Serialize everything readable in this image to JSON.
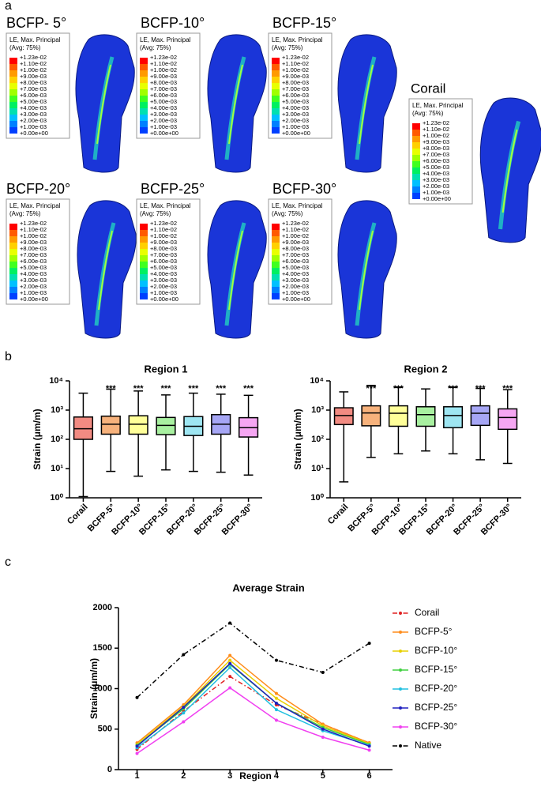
{
  "panel_labels": [
    "a",
    "b",
    "c"
  ],
  "fea_legend": {
    "title": "LE, Max. Principal",
    "subtitle": "(Avg: 75%)",
    "levels": [
      "+1.23e-02",
      "+1.10e-02",
      "+1.00e-02",
      "+9.00e-03",
      "+8.00e-03",
      "+7.00e-03",
      "+6.00e-03",
      "+5.00e-03",
      "+4.00e-03",
      "+3.00e-03",
      "+2.00e-03",
      "+1.00e-03",
      "+0.00e+00"
    ]
  },
  "fea_panels": [
    {
      "title": "BCFP- 5°"
    },
    {
      "title": "BCFP-10°"
    },
    {
      "title": "BCFP-15°"
    },
    {
      "title": "Corail"
    },
    {
      "title": "BCFP-20°"
    },
    {
      "title": "BCFP-25°"
    },
    {
      "title": "BCFP-30°"
    }
  ],
  "chart_data": [
    {
      "type": "box",
      "title": "Region 1",
      "y_label": "Strain (μm/m)",
      "log_scale": true,
      "categories": [
        "Corail",
        "BCFP-5°",
        "BCFP-10°",
        "BCFP-15°",
        "BCFP-20°",
        "BCFP-25°",
        "BCFP-30°"
      ],
      "colors": [
        "#f28b82",
        "#f7b27c",
        "#ffff99",
        "#a8f0a0",
        "#9ee6f2",
        "#a6a6f5",
        "#f5a6f2"
      ],
      "boxes": [
        {
          "min": 1.1,
          "q1": 100,
          "median": 230,
          "q3": 580,
          "max": 3800
        },
        {
          "min": 8,
          "q1": 150,
          "median": 330,
          "q3": 620,
          "max": 5200
        },
        {
          "min": 5.5,
          "q1": 150,
          "median": 330,
          "q3": 640,
          "max": 4500
        },
        {
          "min": 9,
          "q1": 145,
          "median": 300,
          "q3": 560,
          "max": 3300
        },
        {
          "min": 8,
          "q1": 135,
          "median": 280,
          "q3": 600,
          "max": 3800
        },
        {
          "min": 7.5,
          "q1": 150,
          "median": 330,
          "q3": 700,
          "max": 3500
        },
        {
          "min": 6,
          "q1": 120,
          "median": 250,
          "q3": 550,
          "max": 3200
        }
      ],
      "significance": [
        null,
        "***",
        "***",
        "***",
        "***",
        "***",
        "***"
      ],
      "ylim": [
        1,
        10000
      ],
      "yticks": [
        {
          "value": 1,
          "label": "10⁰"
        },
        {
          "value": 10,
          "label": "10¹"
        },
        {
          "value": 100,
          "label": "10²"
        },
        {
          "value": 1000,
          "label": "10³"
        },
        {
          "value": 10000,
          "label": "10⁴"
        }
      ]
    },
    {
      "type": "box",
      "title": "Region 2",
      "y_label": "Strain (μm/m)",
      "log_scale": true,
      "categories": [
        "Corail",
        "BCFP-5°",
        "BCFP-10°",
        "BCFP-15°",
        "BCFP-20°",
        "BCFP-25°",
        "BCFP-30°"
      ],
      "colors": [
        "#f28b82",
        "#f7b27c",
        "#ffff99",
        "#a8f0a0",
        "#9ee6f2",
        "#a6a6f5",
        "#f5a6f2"
      ],
      "boxes": [
        {
          "min": 3.5,
          "q1": 320,
          "median": 650,
          "q3": 1200,
          "max": 4200
        },
        {
          "min": 24,
          "q1": 290,
          "median": 800,
          "q3": 1400,
          "max": 7000
        },
        {
          "min": 32,
          "q1": 280,
          "median": 780,
          "q3": 1400,
          "max": 6000
        },
        {
          "min": 40,
          "q1": 280,
          "median": 700,
          "q3": 1300,
          "max": 5300
        },
        {
          "min": 32,
          "q1": 250,
          "median": 650,
          "q3": 1300,
          "max": 6000
        },
        {
          "min": 20,
          "q1": 300,
          "median": 780,
          "q3": 1400,
          "max": 5500
        },
        {
          "min": 15,
          "q1": 220,
          "median": 560,
          "q3": 1100,
          "max": 5000
        }
      ],
      "significance": [
        null,
        "***",
        "***",
        null,
        "***",
        "***",
        "***"
      ],
      "ylim": [
        1,
        10000
      ],
      "yticks": [
        {
          "value": 1,
          "label": "10⁰"
        },
        {
          "value": 10,
          "label": "10¹"
        },
        {
          "value": 100,
          "label": "10²"
        },
        {
          "value": 1000,
          "label": "10³"
        },
        {
          "value": 10000,
          "label": "10⁴"
        }
      ]
    },
    {
      "type": "line",
      "title": "Average Strain",
      "x_label": "Region",
      "y_label": "Strain (μm/m)",
      "x": [
        1,
        2,
        3,
        4,
        5,
        6
      ],
      "xlim": [
        0.6,
        6.5
      ],
      "xticks": [
        1,
        2,
        3,
        4,
        5,
        6
      ],
      "ylim": [
        0,
        2000
      ],
      "yticks": [
        0,
        500,
        1000,
        1500,
        2000
      ],
      "series": [
        {
          "name": "Corail",
          "color": "#e02020",
          "linestyle": "dashdot",
          "values": [
            250,
            720,
            1150,
            800,
            560,
            330
          ]
        },
        {
          "name": "BCFP-5°",
          "color": "#ff8c1a",
          "values": [
            330,
            800,
            1410,
            940,
            560,
            330
          ]
        },
        {
          "name": "BCFP-10°",
          "color": "#e8d000",
          "values": [
            310,
            780,
            1350,
            880,
            540,
            320
          ]
        },
        {
          "name": "BCFP-15°",
          "color": "#40d040",
          "values": [
            300,
            750,
            1300,
            820,
            520,
            310
          ]
        },
        {
          "name": "BCFP-20°",
          "color": "#20c0e0",
          "values": [
            270,
            700,
            1260,
            740,
            480,
            300
          ]
        },
        {
          "name": "BCFP-25°",
          "color": "#2020c0",
          "values": [
            290,
            770,
            1310,
            820,
            500,
            290
          ]
        },
        {
          "name": "BCFP-30°",
          "color": "#f040f0",
          "values": [
            200,
            590,
            1010,
            610,
            400,
            240
          ]
        },
        {
          "name": "Native",
          "color": "#000000",
          "linestyle": "dashdot",
          "values": [
            890,
            1420,
            1810,
            1350,
            1200,
            1560
          ]
        }
      ]
    }
  ]
}
